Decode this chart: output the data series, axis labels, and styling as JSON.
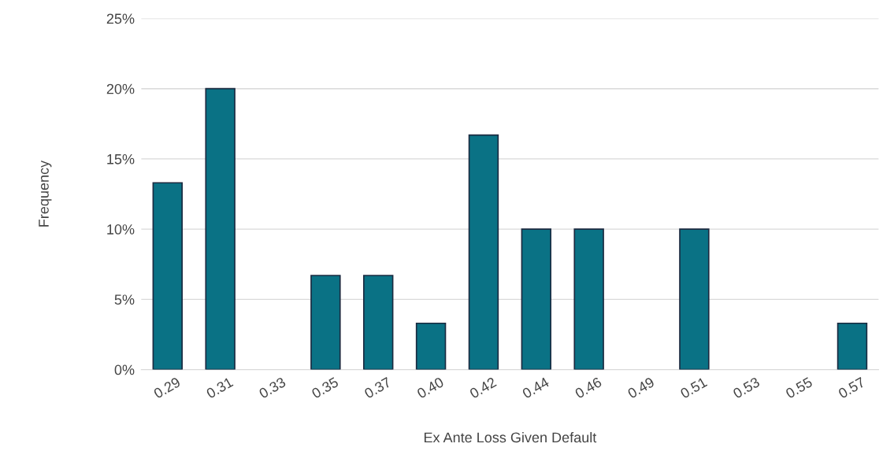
{
  "chart_data": {
    "type": "bar",
    "xlabel": "Ex Ante Loss Given Default",
    "ylabel": "Frequency",
    "categories": [
      "0.29",
      "0.31",
      "0.33",
      "0.35",
      "0.37",
      "0.40",
      "0.42",
      "0.44",
      "0.46",
      "0.49",
      "0.51",
      "0.53",
      "0.55",
      "0.57"
    ],
    "values": [
      13.3,
      20,
      0,
      6.7,
      6.7,
      3.3,
      16.7,
      10,
      10,
      0,
      10,
      0,
      0,
      3.3
    ],
    "color": "#0a7285",
    "ylim": [
      0,
      25
    ],
    "yticks": [
      {
        "value": 0,
        "label": "0%"
      },
      {
        "value": 5,
        "label": "5%"
      },
      {
        "value": 10,
        "label": "10%"
      },
      {
        "value": 15,
        "label": "15%"
      },
      {
        "value": 20,
        "label": "20%"
      },
      {
        "value": 25,
        "label": "25%"
      }
    ],
    "grid": "y",
    "legend": false
  }
}
